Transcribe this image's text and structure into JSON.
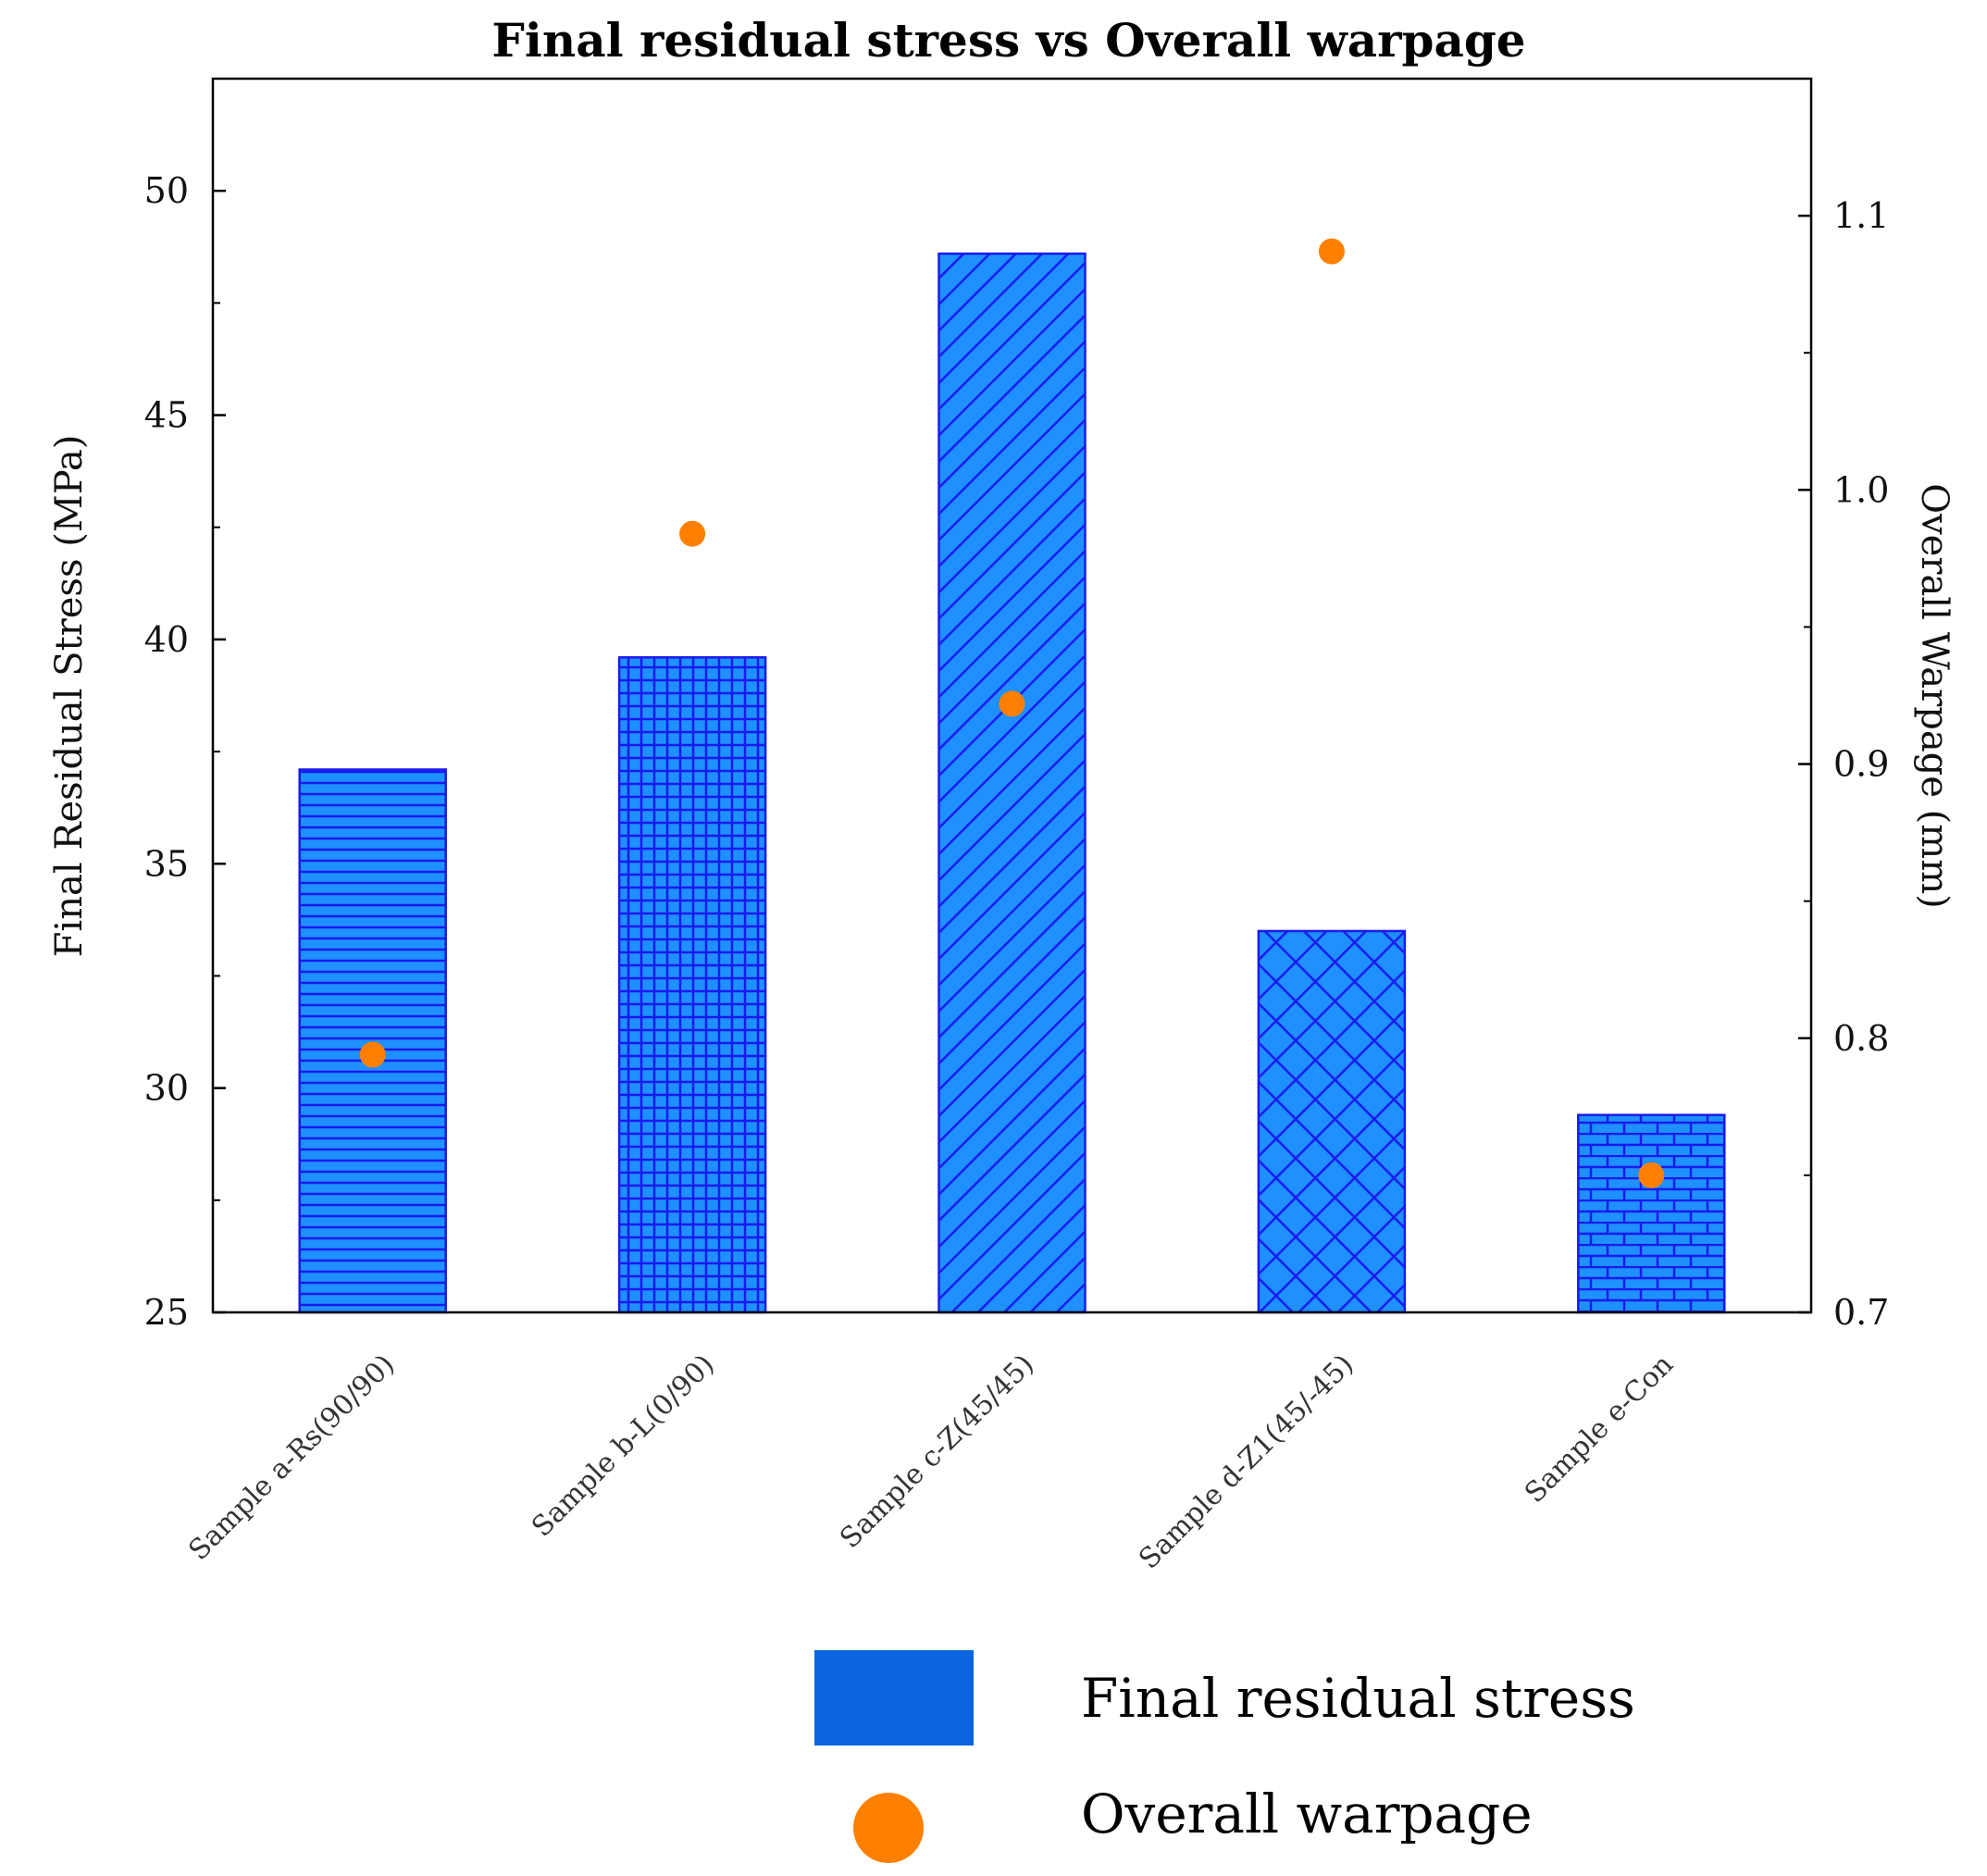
{
  "chart_data": {
    "type": "bar",
    "title": "Final residual stress vs Overall warpage",
    "categories": [
      "Sample a-Rs(90/90)",
      "Sample b-L(0/90)",
      "Sample c-Z(45/45)",
      "Sample d-Z1(45/-45)",
      "Sample e-Con"
    ],
    "series": [
      {
        "name": "Final residual stress",
        "axis": "left",
        "kind": "bar",
        "values": [
          37.1,
          39.6,
          48.6,
          33.5,
          29.4
        ],
        "color": "#1e90ff"
      },
      {
        "name": "Overall warpage",
        "axis": "right",
        "kind": "scatter",
        "values": [
          0.794,
          0.984,
          0.922,
          1.087,
          0.75
        ],
        "color": "#ff8000"
      }
    ],
    "patterns": [
      "horizontal-lines",
      "grid",
      "diagonal",
      "crosshatch",
      "brick"
    ],
    "ylabel": "Final Residual Stress (MPa)",
    "ylim": [
      25,
      52.5
    ],
    "yticks": [
      25,
      30,
      35,
      40,
      45,
      50
    ],
    "y2label": "Overall Warpage (mm)",
    "y2lim": [
      0.7,
      1.15
    ],
    "y2ticks": [
      "0.7",
      "0.8",
      "0.9",
      "1.0",
      "1.1"
    ],
    "legend": [
      {
        "label": "Final residual stress",
        "marker": "bar",
        "color": "#0a64e0"
      },
      {
        "label": "Overall warpage",
        "marker": "circle",
        "color": "#ff8000"
      }
    ],
    "legend_position": "bottom-right"
  }
}
